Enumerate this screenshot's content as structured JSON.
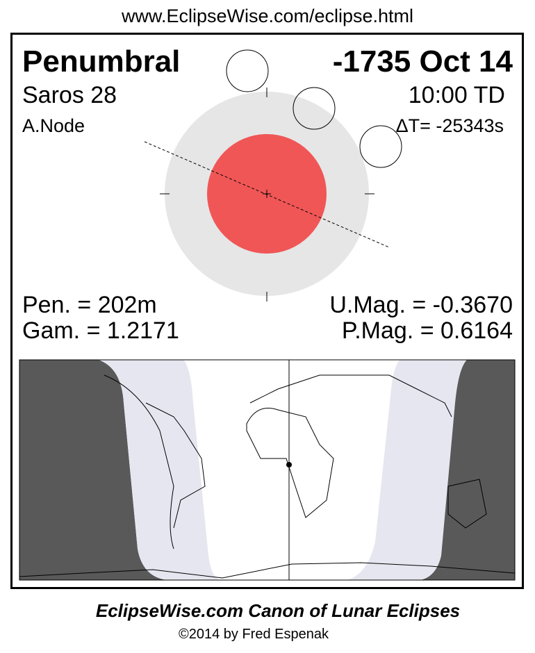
{
  "url": "www.EclipseWise.com/eclipse.html",
  "eclipse": {
    "type": "Penumbral",
    "date": "-1735 Oct 14",
    "saros": "Saros  28",
    "time": "10:00 TD",
    "node": "A.Node",
    "delta_t": "ΔT= -25343s",
    "penumbral_duration": "Pen. = 202m",
    "gamma": "Gam. = 1.2171",
    "umbral_magnitude": "U.Mag. = -0.3670",
    "penumbral_magnitude": "P.Mag. = 0.6164"
  },
  "colors": {
    "umbra": "#f05656",
    "penumbra": "#e6e6e6",
    "night": "#595959",
    "penumbral_zone": "#e6e6f0"
  },
  "footer": {
    "title": "EclipseWise.com Canon of Lunar Eclipses",
    "copyright": "©2014 by Fred Espenak"
  }
}
